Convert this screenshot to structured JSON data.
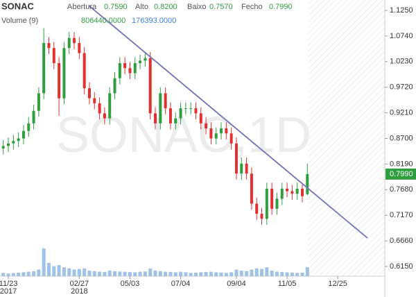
{
  "chart_data": {
    "type": "candlestick",
    "title": "SONAC",
    "watermark": "SONAC,1D",
    "header": [
      {
        "label": "Abertura",
        "value": "0.7590"
      },
      {
        "label": "Alto",
        "value": "0.8200"
      },
      {
        "label": "Baixo",
        "value": "0.7570"
      },
      {
        "label": "Fecho",
        "value": "0.7990"
      }
    ],
    "volume_label": "Volume (9)",
    "volume_header": [
      "806440.0000",
      "176393.0000"
    ],
    "last_price_label": "0.7990",
    "year_labels": [
      "2017",
      "2018"
    ],
    "categories": [
      null,
      "11/23",
      null,
      null,
      null,
      null,
      null,
      null,
      null,
      null,
      null,
      null,
      null,
      null,
      null,
      "02/27",
      null,
      null,
      null,
      null,
      null,
      null,
      null,
      null,
      null,
      "05/03",
      null,
      null,
      null,
      null,
      null,
      null,
      null,
      null,
      null,
      "07/04",
      null,
      null,
      null,
      null,
      null,
      null,
      null,
      null,
      null,
      null,
      "09/04",
      null,
      null,
      null,
      null,
      null,
      null,
      null,
      null,
      null,
      "11/05",
      null,
      null,
      null,
      null,
      null,
      null,
      null,
      null,
      null,
      "12/25"
    ],
    "open": [
      0.85,
      0.855,
      0.86,
      0.865,
      0.87,
      0.885,
      0.9,
      0.925,
      0.96,
      1.06,
      1.05,
      1.02,
      0.95,
      1.05,
      1.07,
      1.06,
      1.04,
      0.97,
      0.95,
      0.94,
      0.92,
      0.91,
      0.96,
      0.99,
      1.02,
      1.01,
      1.0,
      1.02,
      1.025,
      1.03,
      0.92,
      0.9,
      0.96,
      0.93,
      0.9,
      0.91,
      0.93,
      0.93,
      0.93,
      0.92,
      0.9,
      0.89,
      0.87,
      0.88,
      0.89,
      0.88,
      0.86,
      0.8,
      0.82,
      0.8,
      0.74,
      0.72,
      0.71,
      0.77,
      0.73,
      0.75,
      0.77,
      0.765,
      0.76,
      0.77,
      0.759,
      null,
      null,
      null,
      null,
      null,
      null
    ],
    "high": [
      0.867,
      0.872,
      0.877,
      0.882,
      0.897,
      0.912,
      0.937,
      0.972,
      1.09,
      1.072,
      1.062,
      1.032,
      1.062,
      1.082,
      1.082,
      1.072,
      1.052,
      0.982,
      0.962,
      0.952,
      0.932,
      0.972,
      1.002,
      1.032,
      1.032,
      1.022,
      1.032,
      1.037,
      1.042,
      1.042,
      0.932,
      0.972,
      0.972,
      0.942,
      0.922,
      0.942,
      0.942,
      0.942,
      0.942,
      0.932,
      0.912,
      0.902,
      0.892,
      0.902,
      0.902,
      0.892,
      0.872,
      0.832,
      0.832,
      0.812,
      0.752,
      0.732,
      0.782,
      0.782,
      0.762,
      0.782,
      0.782,
      0.777,
      0.782,
      0.782,
      0.82,
      null,
      null,
      null,
      null,
      null,
      null
    ],
    "low": [
      0.838,
      0.843,
      0.848,
      0.853,
      0.858,
      0.873,
      0.888,
      0.913,
      0.948,
      1.038,
      1.008,
      0.915,
      0.938,
      1.038,
      1.048,
      1.028,
      0.958,
      0.938,
      0.928,
      0.908,
      0.898,
      0.898,
      0.948,
      0.978,
      0.998,
      0.988,
      0.988,
      1.008,
      1.013,
      0.908,
      0.888,
      0.888,
      0.918,
      0.888,
      0.888,
      0.898,
      0.918,
      0.918,
      0.908,
      0.888,
      0.878,
      0.858,
      0.858,
      0.868,
      0.868,
      0.848,
      0.788,
      0.788,
      0.788,
      0.728,
      0.708,
      0.698,
      0.698,
      0.718,
      0.718,
      0.738,
      0.753,
      0.748,
      0.748,
      0.743,
      0.757,
      null,
      null,
      null,
      null,
      null,
      null
    ],
    "close": [
      0.855,
      0.86,
      0.865,
      0.87,
      0.885,
      0.9,
      0.925,
      0.96,
      1.06,
      1.05,
      1.02,
      0.95,
      1.05,
      1.07,
      1.06,
      1.04,
      0.97,
      0.95,
      0.94,
      0.92,
      0.91,
      0.96,
      0.99,
      1.02,
      1.01,
      1.0,
      1.02,
      1.025,
      1.03,
      0.92,
      0.9,
      0.96,
      0.93,
      0.9,
      0.91,
      0.93,
      0.93,
      0.93,
      0.92,
      0.9,
      0.89,
      0.87,
      0.88,
      0.89,
      0.88,
      0.86,
      0.8,
      0.82,
      0.8,
      0.74,
      0.72,
      0.71,
      0.77,
      0.73,
      0.75,
      0.77,
      0.765,
      0.76,
      0.77,
      0.755,
      0.799,
      null,
      null,
      null,
      null,
      null,
      null
    ],
    "volume": [
      300000,
      250000,
      280000,
      320000,
      350000,
      400000,
      450000,
      600000,
      2500000,
      1200000,
      900000,
      1000000,
      800000,
      700000,
      600000,
      650000,
      700000,
      500000,
      450000,
      400000,
      380000,
      500000,
      450000,
      420000,
      400000,
      380000,
      350000,
      400000,
      420000,
      700000,
      500000,
      450000,
      400000,
      380000,
      350000,
      400000,
      350000,
      300000,
      320000,
      350000,
      380000,
      400000,
      350000,
      330000,
      300000,
      350000,
      600000,
      500000,
      450000,
      600000,
      700000,
      650000,
      800000,
      500000,
      400000,
      380000,
      350000,
      330000,
      300000,
      320000,
      806440,
      null,
      null,
      null,
      null,
      null,
      null
    ],
    "up_color": "#2e9e3e",
    "down_color": "#e03030",
    "volume_color": "#9ec3e6",
    "ylim": [
      0.5957,
      1.1457
    ],
    "yticks": [
      {
        "value": 1.125,
        "label": "1.1250"
      },
      {
        "value": 1.074,
        "label": "1.0740"
      },
      {
        "value": 1.023,
        "label": "1.0230"
      },
      {
        "value": 0.972,
        "label": "0.9720"
      },
      {
        "value": 0.921,
        "label": "0.9210"
      },
      {
        "value": 0.87,
        "label": "0.8700"
      },
      {
        "value": 0.819,
        "label": "0.8190"
      },
      {
        "value": 0.768,
        "label": "0.7680"
      },
      {
        "value": 0.717,
        "label": "0.7170"
      },
      {
        "value": 0.666,
        "label": "0.6660"
      },
      {
        "value": 0.615,
        "label": "0.6150"
      }
    ],
    "volume_ylim": [
      0,
      3000000
    ],
    "grid": false
  }
}
